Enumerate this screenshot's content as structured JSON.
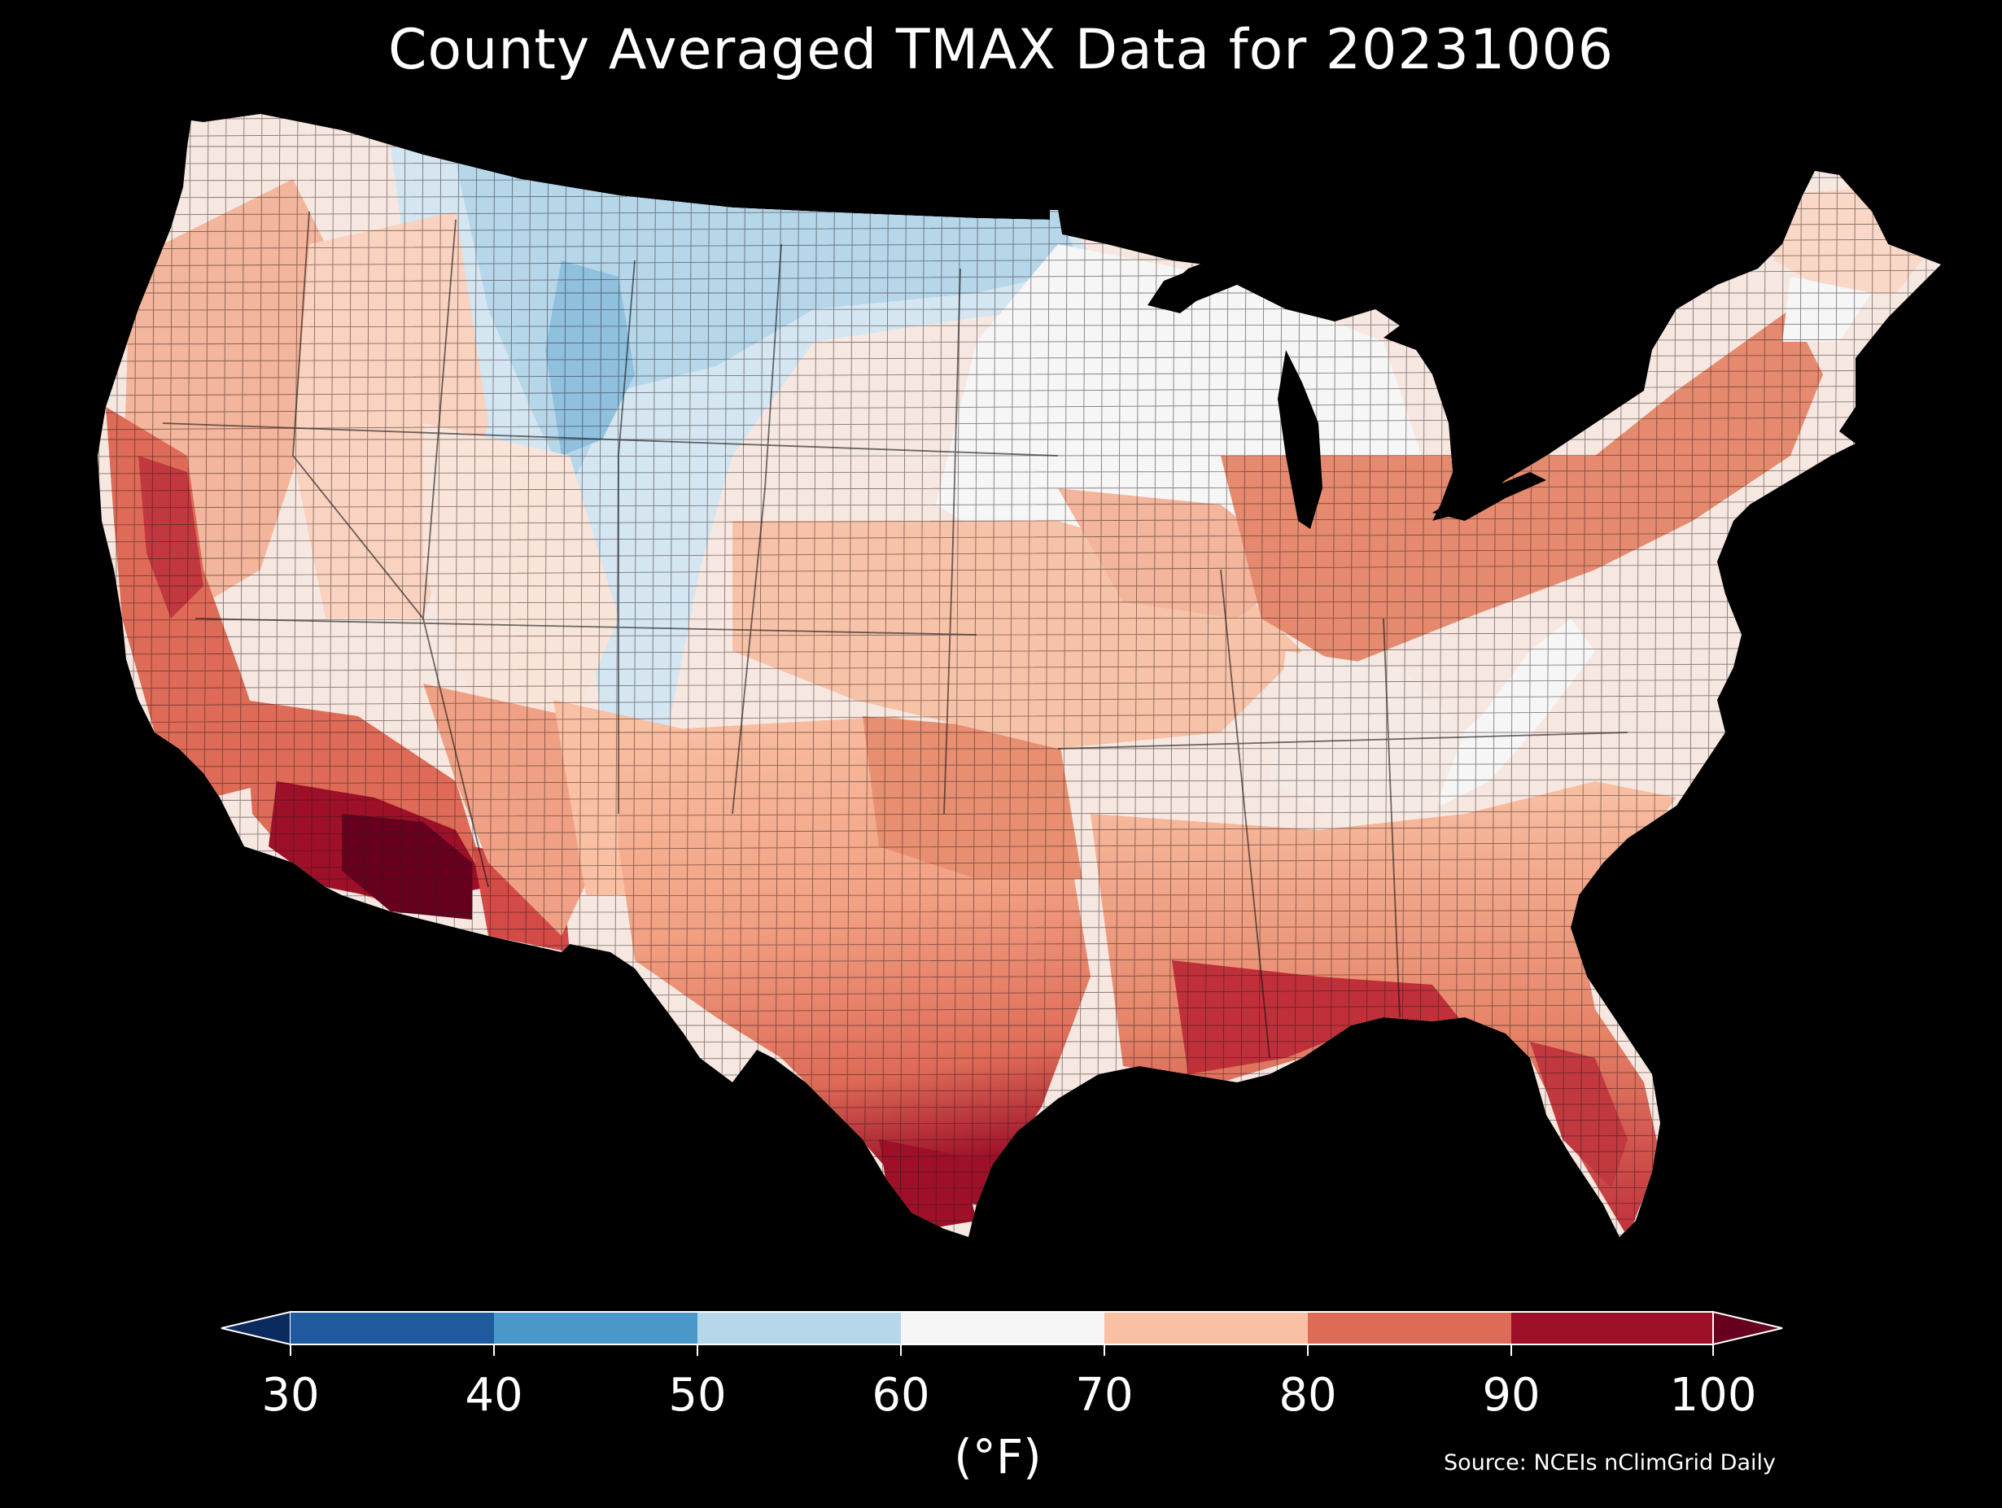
{
  "title": "County Averaged TMAX Data for 20231006",
  "colorbar": {
    "units": "(°F)",
    "ticks": [
      "30",
      "40",
      "50",
      "60",
      "70",
      "80",
      "90",
      "100"
    ],
    "bins": [
      {
        "range": "<30",
        "color": "#0b2b5e"
      },
      {
        "range": "30-40",
        "color": "#1f5a9e"
      },
      {
        "range": "40-50",
        "color": "#4a98c9"
      },
      {
        "range": "50-60",
        "color": "#b6d7ea"
      },
      {
        "range": "60-70",
        "color": "#f6f6f6"
      },
      {
        "range": "70-80",
        "color": "#f9c0a3"
      },
      {
        "range": "80-90",
        "color": "#de6b57"
      },
      {
        "range": "90-100",
        "color": "#9e1028"
      },
      {
        "range": ">100",
        "color": "#67001f"
      }
    ]
  },
  "source": "Source: NCEIs nClimGrid Daily",
  "colors": {
    "background": "#000000",
    "text": "#ffffff",
    "boundary": "#1a1a1a"
  }
}
